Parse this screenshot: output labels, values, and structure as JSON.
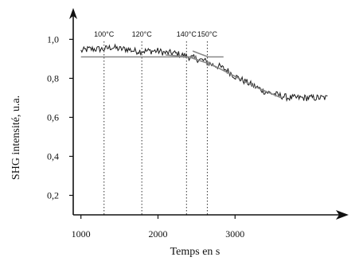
{
  "chart_data": {
    "type": "line",
    "title": "",
    "xlabel": "Temps en s",
    "ylabel": "SHG intensité, u.a.",
    "xlim": [
      900,
      4350
    ],
    "ylim": [
      0.1,
      1.12
    ],
    "xticks": [
      1000,
      2000,
      3000
    ],
    "xtick_labels": [
      "1000",
      "2000",
      "3000"
    ],
    "yticks": [
      0.2,
      0.4,
      0.6,
      0.8,
      1.0
    ],
    "ytick_labels": [
      "0,2",
      "0,4",
      "0,6",
      "0,8",
      "1,0"
    ],
    "grid": false,
    "temperature_markers": [
      {
        "label": "100°C",
        "x": 1300
      },
      {
        "label": "120°C",
        "x": 1790
      },
      {
        "label": "140°C",
        "x": 2370
      },
      {
        "label": "150°C",
        "x": 2640
      }
    ],
    "series": [
      {
        "style": "noisy",
        "x": [
          1000,
          1100,
          1200,
          1300,
          1400,
          1500,
          1600,
          1700,
          1800,
          1900,
          2000,
          2100,
          2200,
          2300,
          2400,
          2500,
          2600,
          2700,
          2800,
          2900,
          3000,
          3100,
          3200,
          3300,
          3400,
          3500,
          3600,
          3700,
          3800,
          3900,
          4000,
          4100,
          4200
        ],
        "values": [
          0.94,
          0.95,
          0.95,
          0.95,
          0.96,
          0.95,
          0.95,
          0.94,
          0.94,
          0.94,
          0.94,
          0.93,
          0.93,
          0.92,
          0.91,
          0.9,
          0.89,
          0.87,
          0.86,
          0.84,
          0.81,
          0.79,
          0.77,
          0.75,
          0.73,
          0.72,
          0.71,
          0.7,
          0.7,
          0.7,
          0.7,
          0.7,
          0.7
        ]
      },
      {
        "style": "fit",
        "x": [
          1000,
          1400,
          1800,
          2200,
          2500
        ],
        "values": [
          0.91,
          0.91,
          0.91,
          0.91,
          0.91
        ]
      },
      {
        "style": "fit",
        "x": [
          2100,
          2400,
          2700,
          3000,
          3300,
          3600
        ],
        "values": [
          0.92,
          0.91,
          0.87,
          0.81,
          0.75,
          0.7
        ]
      },
      {
        "style": "fit",
        "x": [
          2450,
          2650,
          2850
        ],
        "values": [
          0.94,
          0.91,
          0.91
        ]
      }
    ]
  }
}
